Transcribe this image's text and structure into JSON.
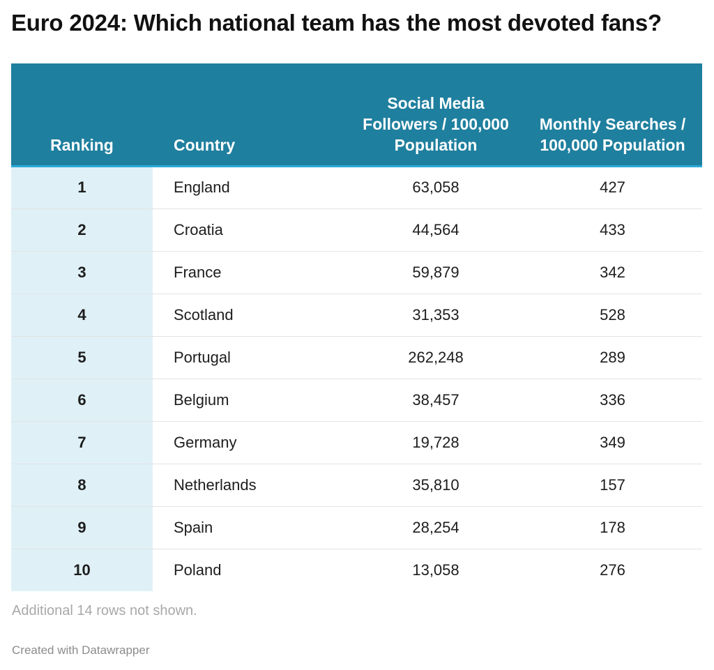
{
  "title": "Euro 2024: Which national team has the most devoted fans?",
  "note": "Additional 14 rows not shown.",
  "credit": "Created with Datawrapper",
  "colors": {
    "header_bg": "#1f7f9e",
    "header_rule": "#2aaad8",
    "rank_col_bg": "#dff1f7"
  },
  "chart_data": {
    "type": "table",
    "columns": [
      "Ranking",
      "Country",
      "Social Media Followers / 100,000 Population",
      "Monthly Searches / 100,000 Population"
    ],
    "rows": [
      [
        "1",
        "England",
        "63,058",
        "427"
      ],
      [
        "2",
        "Croatia",
        "44,564",
        "433"
      ],
      [
        "3",
        "France",
        "59,879",
        "342"
      ],
      [
        "4",
        "Scotland",
        "31,353",
        "528"
      ],
      [
        "5",
        "Portugal",
        "262,248",
        "289"
      ],
      [
        "6",
        "Belgium",
        "38,457",
        "336"
      ],
      [
        "7",
        "Germany",
        "19,728",
        "349"
      ],
      [
        "8",
        "Netherlands",
        "35,810",
        "157"
      ],
      [
        "9",
        "Spain",
        "28,254",
        "178"
      ],
      [
        "10",
        "Poland",
        "13,058",
        "276"
      ]
    ]
  }
}
